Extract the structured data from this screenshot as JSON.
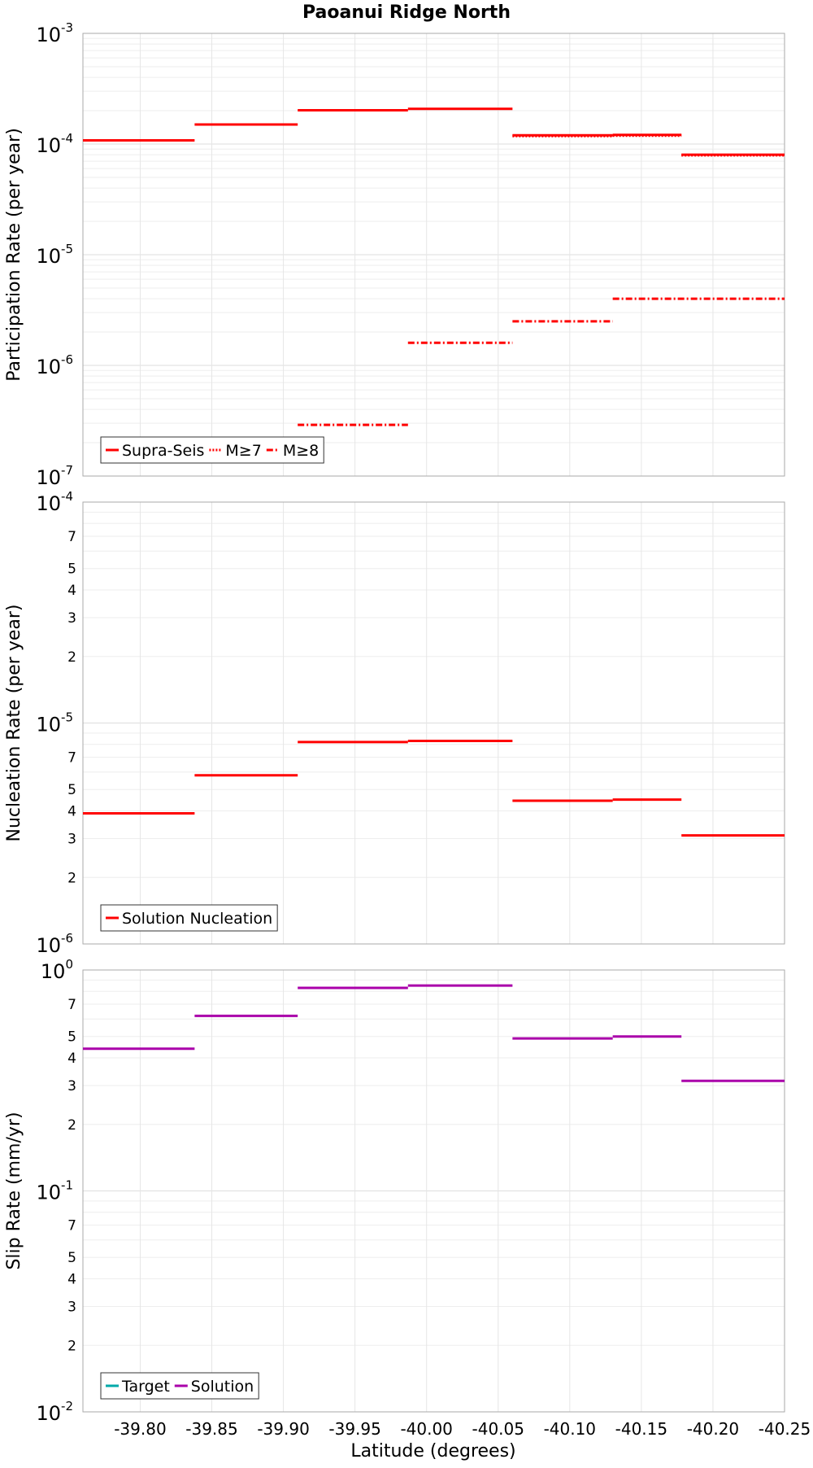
{
  "chart_data": {
    "title": "Paoanui Ridge North",
    "xlabel": "Latitude (degrees)",
    "xlim": [
      -39.76,
      -40.25
    ],
    "xticks": [
      -39.8,
      -39.85,
      -39.9,
      -39.95,
      -40.0,
      -40.05,
      -40.1,
      -40.15,
      -40.2,
      -40.25
    ],
    "xtick_labels": [
      "-39.80",
      "-39.85",
      "-39.90",
      "-39.95",
      "-40.00",
      "-40.05",
      "-40.10",
      "-40.15",
      "-40.20",
      "-40.25"
    ],
    "panels": [
      {
        "type": "line",
        "scale": "log",
        "ylabel": "Participation Rate (per year)",
        "ylim_exp": [
          -7,
          -3
        ],
        "major_labels": [
          {
            "exp": -3,
            "base": "10",
            "sup": "-3"
          },
          {
            "exp": -4,
            "base": "10",
            "sup": "-4"
          },
          {
            "exp": -5,
            "base": "10",
            "sup": "-5"
          },
          {
            "exp": -6,
            "base": "10",
            "sup": "-6"
          },
          {
            "exp": -7,
            "base": "10",
            "sup": "-7"
          }
        ],
        "minor_labels": [],
        "legend": {
          "position": "bottom-left",
          "entries": [
            {
              "label": "Supra-Seis",
              "color": "#ff0000",
              "style": "solid"
            },
            {
              "label": "M≥7",
              "color": "#ff0000",
              "style": "dotted"
            },
            {
              "label": "M≥8",
              "color": "#ff0000",
              "style": "dashdot"
            }
          ]
        },
        "series": [
          {
            "name": "Supra-Seis",
            "color": "#ff0000",
            "style": "solid",
            "segments": [
              {
                "x0": -39.76,
                "x1": -39.838,
                "y": 0.000108
              },
              {
                "x0": -39.838,
                "x1": -39.91,
                "y": 0.00015
              },
              {
                "x0": -39.91,
                "x1": -39.987,
                "y": 0.000202
              },
              {
                "x0": -39.987,
                "x1": -40.06,
                "y": 0.000208
              },
              {
                "x0": -40.06,
                "x1": -40.13,
                "y": 0.00012
              },
              {
                "x0": -40.13,
                "x1": -40.178,
                "y": 0.000121
              },
              {
                "x0": -40.178,
                "x1": -40.25,
                "y": 8e-05
              }
            ]
          },
          {
            "name": "M≥7",
            "color": "#ff0000",
            "style": "dotted",
            "segments": [
              {
                "x0": -40.06,
                "x1": -40.13,
                "y": 0.000118
              },
              {
                "x0": -40.13,
                "x1": -40.178,
                "y": 0.000119
              },
              {
                "x0": -40.178,
                "x1": -40.25,
                "y": 7.9e-05
              }
            ]
          },
          {
            "name": "M≥8",
            "color": "#ff0000",
            "style": "dashdot",
            "segments": [
              {
                "x0": -39.91,
                "x1": -39.987,
                "y": 2.9e-07
              },
              {
                "x0": -39.987,
                "x1": -40.06,
                "y": 1.6e-06
              },
              {
                "x0": -40.06,
                "x1": -40.13,
                "y": 2.5e-06
              },
              {
                "x0": -40.13,
                "x1": -40.25,
                "y": 4e-06
              }
            ]
          }
        ]
      },
      {
        "type": "line",
        "scale": "log",
        "ylabel": "Nucleation Rate (per year)",
        "ylim_exp": [
          -6,
          -4
        ],
        "major_labels": [
          {
            "exp": -4,
            "base": "10",
            "sup": "-4"
          },
          {
            "exp": -5,
            "base": "10",
            "sup": "-5"
          },
          {
            "exp": -6,
            "base": "10",
            "sup": "-6"
          }
        ],
        "minor_labels": [
          {
            "value": 7e-05,
            "label": "7"
          },
          {
            "value": 5e-05,
            "label": "5"
          },
          {
            "value": 4e-05,
            "label": "4"
          },
          {
            "value": 3e-05,
            "label": "3"
          },
          {
            "value": 2e-05,
            "label": "2"
          },
          {
            "value": 7e-06,
            "label": "7"
          },
          {
            "value": 5e-06,
            "label": "5"
          },
          {
            "value": 4e-06,
            "label": "4"
          },
          {
            "value": 3e-06,
            "label": "3"
          },
          {
            "value": 2e-06,
            "label": "2"
          }
        ],
        "legend": {
          "position": "bottom-left",
          "entries": [
            {
              "label": "Solution Nucleation",
              "color": "#ff0000",
              "style": "solid"
            }
          ]
        },
        "series": [
          {
            "name": "Solution Nucleation",
            "color": "#ff0000",
            "style": "solid",
            "segments": [
              {
                "x0": -39.76,
                "x1": -39.838,
                "y": 3.9e-06
              },
              {
                "x0": -39.838,
                "x1": -39.91,
                "y": 5.8e-06
              },
              {
                "x0": -39.91,
                "x1": -39.987,
                "y": 8.2e-06
              },
              {
                "x0": -39.987,
                "x1": -40.06,
                "y": 8.3e-06
              },
              {
                "x0": -40.06,
                "x1": -40.13,
                "y": 4.45e-06
              },
              {
                "x0": -40.13,
                "x1": -40.178,
                "y": 4.5e-06
              },
              {
                "x0": -40.178,
                "x1": -40.25,
                "y": 3.1e-06
              }
            ]
          }
        ]
      },
      {
        "type": "line",
        "scale": "log",
        "ylabel": "Slip Rate (mm/yr)",
        "ylim_exp": [
          -2,
          0
        ],
        "major_labels": [
          {
            "exp": 0,
            "base": "10",
            "sup": "0"
          },
          {
            "exp": -1,
            "base": "10",
            "sup": "-1"
          },
          {
            "exp": -2,
            "base": "10",
            "sup": "-2"
          }
        ],
        "minor_labels": [
          {
            "value": 0.7,
            "label": "7"
          },
          {
            "value": 0.5,
            "label": "5"
          },
          {
            "value": 0.4,
            "label": "4"
          },
          {
            "value": 0.3,
            "label": "3"
          },
          {
            "value": 0.2,
            "label": "2"
          },
          {
            "value": 0.07,
            "label": "7"
          },
          {
            "value": 0.05,
            "label": "5"
          },
          {
            "value": 0.04,
            "label": "4"
          },
          {
            "value": 0.03,
            "label": "3"
          },
          {
            "value": 0.02,
            "label": "2"
          }
        ],
        "legend": {
          "position": "bottom-left",
          "entries": [
            {
              "label": "Target",
              "color": "#00aaaa",
              "style": "solid"
            },
            {
              "label": "Solution",
              "color": "#aa00aa",
              "style": "solid"
            }
          ]
        },
        "series": [
          {
            "name": "Solution",
            "color": "#aa00aa",
            "style": "solid",
            "segments": [
              {
                "x0": -39.76,
                "x1": -39.838,
                "y": 0.44
              },
              {
                "x0": -39.838,
                "x1": -39.91,
                "y": 0.62
              },
              {
                "x0": -39.91,
                "x1": -39.987,
                "y": 0.83
              },
              {
                "x0": -39.987,
                "x1": -40.06,
                "y": 0.85
              },
              {
                "x0": -40.06,
                "x1": -40.13,
                "y": 0.49
              },
              {
                "x0": -40.13,
                "x1": -40.178,
                "y": 0.5
              },
              {
                "x0": -40.178,
                "x1": -40.25,
                "y": 0.315
              }
            ]
          }
        ]
      }
    ]
  }
}
